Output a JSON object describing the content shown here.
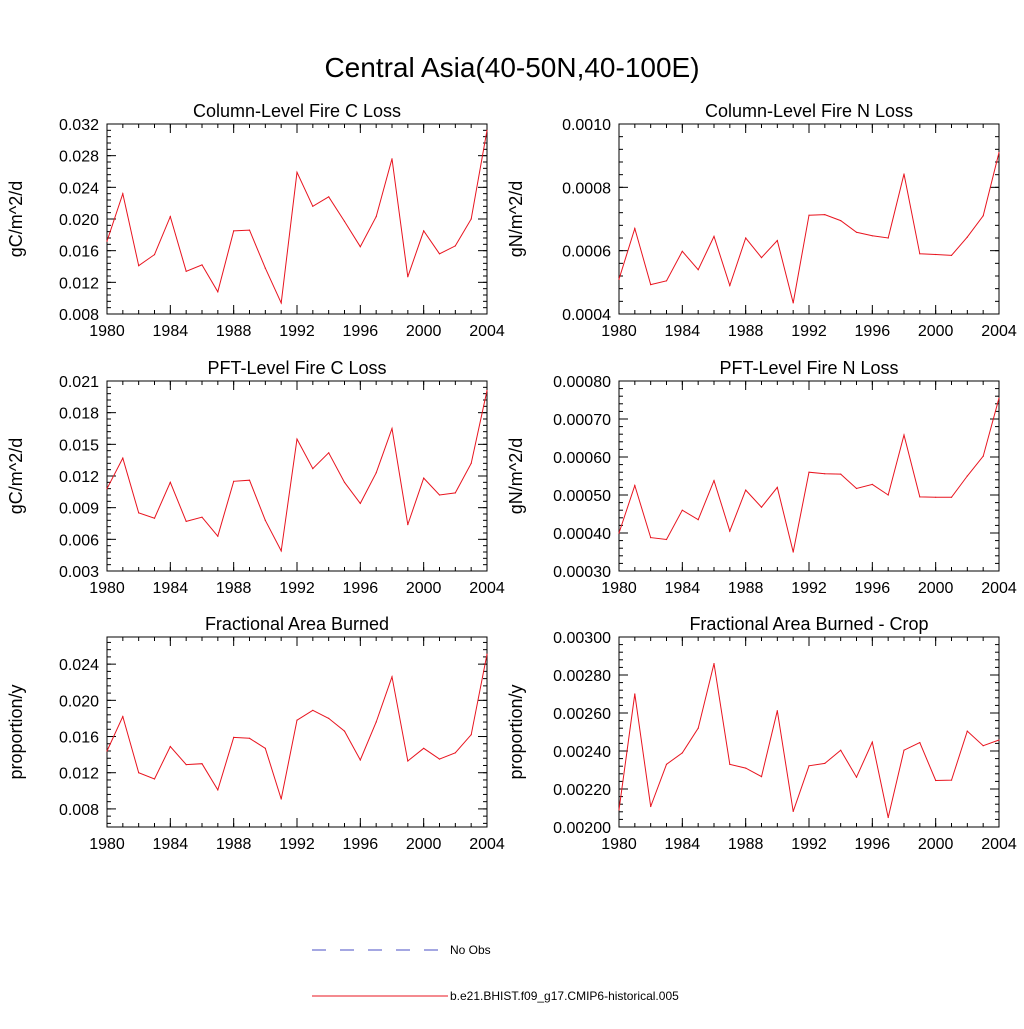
{
  "figure": {
    "title": "Central Asia(40-50N,40-100E)"
  },
  "legend": [
    {
      "label": "No Obs",
      "color": "#4a4fc4",
      "style": "dashed"
    },
    {
      "label": "b.e21.BHIST.f09_g17.CMIP6-historical.005",
      "color": "#e8141f",
      "style": "solid"
    }
  ],
  "chart_data": [
    {
      "type": "line",
      "title": "Column-Level Fire C Loss",
      "xlabel": "",
      "ylabel": "gC/m^2/d",
      "xlim": [
        1980,
        2004
      ],
      "ylim": [
        0.008,
        0.032
      ],
      "xticks": [
        "1980",
        "1984",
        "1988",
        "1992",
        "1996",
        "2000",
        "2004"
      ],
      "yticks": [
        "0.008",
        "0.012",
        "0.016",
        "0.020",
        "0.024",
        "0.028",
        "0.032"
      ],
      "x": [
        1980,
        1981,
        1982,
        1983,
        1984,
        1985,
        1986,
        1987,
        1988,
        1989,
        1990,
        1991,
        1992,
        1993,
        1994,
        1995,
        1996,
        1997,
        1998,
        1999,
        2000,
        2001,
        2002,
        2003,
        2004
      ],
      "series": [
        {
          "name": "b.e21.BHIST.f09_g17.CMIP6-historical.005",
          "color": "#e8141f",
          "values": [
            0.0172,
            0.0232,
            0.0141,
            0.0155,
            0.0203,
            0.0134,
            0.0142,
            0.0108,
            0.0185,
            0.0186,
            0.0138,
            0.0094,
            0.0259,
            0.0216,
            0.0228,
            0.0197,
            0.0165,
            0.0203,
            0.0276,
            0.0127,
            0.0185,
            0.0156,
            0.0166,
            0.02,
            0.0312
          ]
        }
      ]
    },
    {
      "type": "line",
      "title": "Column-Level Fire N Loss",
      "xlabel": "",
      "ylabel": "gN/m^2/d",
      "xlim": [
        1980,
        2004
      ],
      "ylim": [
        0.0004,
        0.001
      ],
      "xticks": [
        "1980",
        "1984",
        "1988",
        "1992",
        "1996",
        "2000",
        "2004"
      ],
      "yticks": [
        "0.0004",
        "0.0006",
        "0.0008",
        "0.0010"
      ],
      "x": [
        1980,
        1981,
        1982,
        1983,
        1984,
        1985,
        1986,
        1987,
        1988,
        1989,
        1990,
        1991,
        1992,
        1993,
        1994,
        1995,
        1996,
        1997,
        1998,
        1999,
        2000,
        2001,
        2002,
        2003,
        2004
      ],
      "series": [
        {
          "name": "b.e21.BHIST.f09_g17.CMIP6-historical.005",
          "color": "#e8141f",
          "values": [
            0.00051,
            0.00067,
            0.000493,
            0.000505,
            0.000598,
            0.00054,
            0.000645,
            0.00049,
            0.00064,
            0.000578,
            0.000632,
            0.000435,
            0.000712,
            0.000714,
            0.000695,
            0.000658,
            0.000647,
            0.00064,
            0.000842,
            0.00059,
            0.000588,
            0.000585,
            0.000643,
            0.00071,
            0.00091
          ]
        }
      ]
    },
    {
      "type": "line",
      "title": "PFT-Level Fire C Loss",
      "xlabel": "",
      "ylabel": "gC/m^2/d",
      "xlim": [
        1980,
        2004
      ],
      "ylim": [
        0.003,
        0.021
      ],
      "xticks": [
        "1980",
        "1984",
        "1988",
        "1992",
        "1996",
        "2000",
        "2004"
      ],
      "yticks": [
        "0.003",
        "0.006",
        "0.009",
        "0.012",
        "0.015",
        "0.018",
        "0.021"
      ],
      "x": [
        1980,
        1981,
        1982,
        1983,
        1984,
        1985,
        1986,
        1987,
        1988,
        1989,
        1990,
        1991,
        1992,
        1993,
        1994,
        1995,
        1996,
        1997,
        1998,
        1999,
        2000,
        2001,
        2002,
        2003,
        2004
      ],
      "series": [
        {
          "name": "b.e21.BHIST.f09_g17.CMIP6-historical.005",
          "color": "#e8141f",
          "values": [
            0.0108,
            0.0137,
            0.0085,
            0.008,
            0.0114,
            0.0077,
            0.0081,
            0.0063,
            0.0115,
            0.0116,
            0.0078,
            0.0049,
            0.0155,
            0.0127,
            0.0142,
            0.0114,
            0.0094,
            0.0123,
            0.0165,
            0.0074,
            0.0118,
            0.0102,
            0.0104,
            0.0132,
            0.0201
          ]
        }
      ]
    },
    {
      "type": "line",
      "title": "PFT-Level Fire N Loss",
      "xlabel": "",
      "ylabel": "gN/m^2/d",
      "xlim": [
        1980,
        2004
      ],
      "ylim": [
        0.0003,
        0.0008
      ],
      "xticks": [
        "1980",
        "1984",
        "1988",
        "1992",
        "1996",
        "2000",
        "2004"
      ],
      "yticks": [
        "0.00030",
        "0.00040",
        "0.00050",
        "0.00060",
        "0.00070",
        "0.00080"
      ],
      "x": [
        1980,
        1981,
        1982,
        1983,
        1984,
        1985,
        1986,
        1987,
        1988,
        1989,
        1990,
        1991,
        1992,
        1993,
        1994,
        1995,
        1996,
        1997,
        1998,
        1999,
        2000,
        2001,
        2002,
        2003,
        2004
      ],
      "series": [
        {
          "name": "b.e21.BHIST.f09_g17.CMIP6-historical.005",
          "color": "#e8141f",
          "values": [
            0.0004,
            0.000525,
            0.000388,
            0.000383,
            0.00046,
            0.000435,
            0.000538,
            0.000405,
            0.000513,
            0.000468,
            0.00052,
            0.00035,
            0.00056,
            0.000556,
            0.000555,
            0.000517,
            0.000528,
            0.0005,
            0.000658,
            0.000495,
            0.000494,
            0.000494,
            0.00055,
            0.000602,
            0.000755
          ]
        }
      ]
    },
    {
      "type": "line",
      "title": "Fractional Area Burned",
      "xlabel": "",
      "ylabel": "proportion/y",
      "xlim": [
        1980,
        2004
      ],
      "ylim": [
        0.006,
        0.027
      ],
      "xticks": [
        "1980",
        "1984",
        "1988",
        "1992",
        "1996",
        "2000",
        "2004"
      ],
      "yticks": [
        "0.008",
        "0.012",
        "0.016",
        "0.020",
        "0.024"
      ],
      "x": [
        1980,
        1981,
        1982,
        1983,
        1984,
        1985,
        1986,
        1987,
        1988,
        1989,
        1990,
        1991,
        1992,
        1993,
        1994,
        1995,
        1996,
        1997,
        1998,
        1999,
        2000,
        2001,
        2002,
        2003,
        2004
      ],
      "series": [
        {
          "name": "b.e21.BHIST.f09_g17.CMIP6-historical.005",
          "color": "#e8141f",
          "values": [
            0.0144,
            0.0182,
            0.012,
            0.0113,
            0.0149,
            0.0129,
            0.013,
            0.0101,
            0.0159,
            0.0158,
            0.0147,
            0.0091,
            0.0178,
            0.0189,
            0.018,
            0.0166,
            0.0134,
            0.0176,
            0.0226,
            0.0133,
            0.0147,
            0.0135,
            0.0142,
            0.0162,
            0.0251
          ]
        }
      ]
    },
    {
      "type": "line",
      "title": "Fractional Area Burned - Crop",
      "xlabel": "",
      "ylabel": "proportion/y",
      "xlim": [
        1980,
        2004
      ],
      "ylim": [
        0.002,
        0.003
      ],
      "xticks": [
        "1980",
        "1984",
        "1988",
        "1992",
        "1996",
        "2000",
        "2004"
      ],
      "yticks": [
        "0.00200",
        "0.00220",
        "0.00240",
        "0.00260",
        "0.00280",
        "0.00300"
      ],
      "x": [
        1980,
        1981,
        1982,
        1983,
        1984,
        1985,
        1986,
        1987,
        1988,
        1989,
        1990,
        1991,
        1992,
        1993,
        1994,
        1995,
        1996,
        1997,
        1998,
        1999,
        2000,
        2001,
        2002,
        2003,
        2004
      ],
      "series": [
        {
          "name": "b.e21.BHIST.f09_g17.CMIP6-historical.005",
          "color": "#e8141f",
          "values": [
            0.00209,
            0.0027,
            0.002108,
            0.00233,
            0.00239,
            0.00252,
            0.00286,
            0.00233,
            0.00231,
            0.002265,
            0.002612,
            0.002082,
            0.002322,
            0.002335,
            0.002404,
            0.002262,
            0.002447,
            0.00205,
            0.002404,
            0.002444,
            0.002245,
            0.002247,
            0.002505,
            0.002428,
            0.002458
          ]
        }
      ]
    }
  ]
}
